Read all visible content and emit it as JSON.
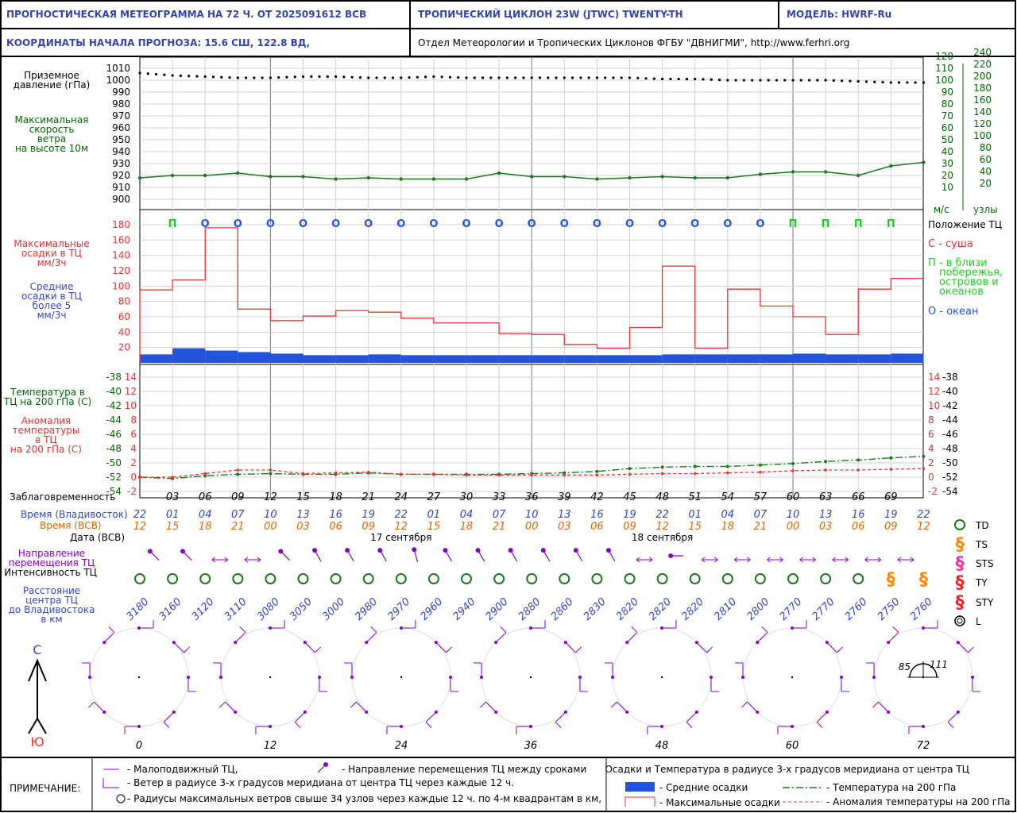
{
  "header": {
    "title": "ПРОГНОСТИЧЕСКАЯ МЕТЕОГРАММА НА 72 Ч. ОТ 2025091612 ВСВ",
    "cyclone": "ТРОПИЧЕСКИЙ ЦИКЛОН  23W  (JTWC)  TWENTY-TH",
    "model": "МОДЕЛЬ:   HWRF-Ru",
    "coords": "КООРДИНАТЫ НАЧАЛА ПРОГНОЗА:  15.6  СШ,    122.8  ВД,",
    "org": "Отдел Метеорологии и Тропических Циклонов ФГБУ \"ДВНИГМИ\",   http://www.ferhri.org"
  },
  "labels": {
    "pressure": [
      "Приземное",
      "давление (гПа)"
    ],
    "wind": [
      "Максимальная",
      "скорость",
      "ветра",
      "на высоте 10м"
    ],
    "precip_max": [
      "Максимальные",
      "осадки в ТЦ",
      "мм/3ч"
    ],
    "precip_avg": [
      "Средние",
      "осадки в ТЦ",
      "более 5",
      "мм/3ч"
    ],
    "temp": [
      "Температура в",
      "ТЦ на 200 гПа (C)"
    ],
    "anom": [
      "Аномалия",
      "температуры",
      "в ТЦ",
      "на 200 гПа (С)"
    ],
    "lead": "Заблаговременность",
    "time_vlad": "Время (Владивосток)",
    "time_utc": "Время (ВСВ)",
    "date": "Дата (ВСВ)",
    "direction": [
      "Направление",
      "перемещения ТЦ"
    ],
    "intensity": "Интенсивность ТЦ",
    "distance": [
      "Расстояние",
      "центра ТЦ",
      "до Владивостока",
      "в км"
    ],
    "ms": "м/с",
    "kt": "узлы",
    "north": "С",
    "south": "Ю"
  },
  "position_legend": {
    "title": "Положение ТЦ",
    "land": "С - суша",
    "coast": [
      "П - в близи",
      "побережья,",
      "островов и",
      "океанов"
    ],
    "ocean": "О - океан"
  },
  "intensity_legend": [
    "TD",
    "TS",
    "STS",
    "TY",
    "STY",
    "L"
  ],
  "footer": {
    "note": "ПРИМЕЧАНИЕ:",
    "stationary": "- Малоподвижный ТЦ,",
    "direction": "- Направление перемещения ТЦ между сроками",
    "wind": "- Ветер в радиусе 3-х градусов меридиана от центра ТЦ через каждые 12 ч.",
    "radii": "- Радиусы максимальных ветров свыше 34 узлов через каждые 12 ч. по 4-м квадрантам в км,",
    "precip_title": "Осадки и Температура в радиусе 3-х градусов меридиана от центра ТЦ",
    "avg": "- Средние осадки",
    "max": "- Максимальные осадки",
    "temp": "- Температура на 200 гПа",
    "anom": "- Аномалия температуры на 200 гПа"
  },
  "dates": [
    "17 сентября",
    "18 сентября"
  ],
  "wind_rose_labels": [
    "0",
    "12",
    "24",
    "36",
    "48",
    "60",
    "72"
  ],
  "radii_values": [
    "85",
    "111"
  ],
  "colors": {
    "blue_text": "#3344cc",
    "green_text": "#006600",
    "red_text": "#dd3333",
    "orange_text": "#dd6600",
    "purple": "#8800cc",
    "precip_avg": "#2255dd",
    "precip_max": "#ee3333"
  },
  "chart_data": {
    "type": "line",
    "lead_hours": [
      0,
      3,
      6,
      9,
      12,
      15,
      18,
      21,
      24,
      27,
      30,
      33,
      36,
      39,
      42,
      45,
      48,
      51,
      54,
      57,
      60,
      63,
      66,
      69,
      72
    ],
    "lead_labels": [
      "03",
      "06",
      "09",
      "12",
      "15",
      "18",
      "21",
      "24",
      "27",
      "30",
      "33",
      "36",
      "39",
      "42",
      "45",
      "48",
      "51",
      "54",
      "57",
      "60",
      "63",
      "66",
      "69"
    ],
    "time_vladivostok": [
      "22",
      "01",
      "04",
      "07",
      "10",
      "13",
      "16",
      "19",
      "22",
      "01",
      "04",
      "07",
      "10",
      "13",
      "16",
      "19",
      "22",
      "01",
      "04",
      "07",
      "10",
      "13",
      "16",
      "19",
      "22"
    ],
    "time_utc": [
      "12",
      "15",
      "18",
      "21",
      "00",
      "03",
      "06",
      "09",
      "12",
      "15",
      "18",
      "21",
      "00",
      "03",
      "06",
      "09",
      "12",
      "15",
      "18",
      "21",
      "00",
      "03",
      "06",
      "09",
      "12"
    ],
    "pressure_hpa": [
      1006,
      1004,
      1003,
      1002,
      1002,
      1003,
      1003,
      1002,
      1002,
      1003,
      1002,
      1002,
      1002,
      1002,
      1002,
      1002,
      1001,
      1001,
      1000,
      1000,
      1000,
      1000,
      999,
      998,
      998
    ],
    "pressure_axis": [
      900,
      910,
      920,
      930,
      940,
      950,
      960,
      970,
      980,
      990,
      1000,
      1010
    ],
    "max_wind_ms": [
      18,
      20,
      20,
      22,
      19,
      19,
      17,
      18,
      17,
      17,
      17,
      22,
      19,
      19,
      17,
      18,
      19,
      18,
      18,
      21,
      23,
      23,
      20,
      28,
      31
    ],
    "wind_axis_ms": [
      10,
      20,
      30,
      40,
      50,
      60,
      70,
      80,
      90,
      100,
      110,
      120
    ],
    "wind_axis_kt": [
      20,
      40,
      60,
      80,
      100,
      120,
      140,
      160,
      180,
      200,
      220,
      240
    ],
    "position": [
      "П",
      "О",
      "О",
      "О",
      "О",
      "О",
      "О",
      "О",
      "О",
      "О",
      "О",
      "О",
      "О",
      "О",
      "О",
      "О",
      "О",
      "О",
      "О",
      "П",
      "П",
      "П",
      "П"
    ],
    "precip_max": [
      95,
      108,
      176,
      70,
      55,
      61,
      68,
      66,
      58,
      52,
      52,
      38,
      37,
      24,
      19,
      46,
      126,
      19,
      96,
      74,
      60,
      37,
      96,
      110
    ],
    "precip_avg": [
      11,
      19,
      16,
      14,
      12,
      10,
      10,
      11,
      10,
      10,
      10,
      10,
      10,
      10,
      10,
      10,
      11,
      11,
      11,
      11,
      12,
      11,
      11,
      12
    ],
    "precip_axis": [
      20,
      40,
      60,
      80,
      100,
      120,
      140,
      160,
      180
    ],
    "temp_200": [
      -52.0,
      -52.2,
      -51.8,
      -51.6,
      -51.5,
      -51.6,
      -51.6,
      -51.4,
      -51.6,
      -51.6,
      -51.6,
      -51.6,
      -51.5,
      -51.4,
      -51.2,
      -50.8,
      -50.6,
      -50.5,
      -50.5,
      -50.3,
      -50.1,
      -49.8,
      -49.6,
      -49.3,
      -49.1
    ],
    "anomaly_200": [
      0,
      0,
      0.5,
      1,
      1,
      0.5,
      0.6,
      0.7,
      0.4,
      0.4,
      0.3,
      0.3,
      0.3,
      0.3,
      0.3,
      0.4,
      0.5,
      0.5,
      0.6,
      0.7,
      0.9,
      1.0,
      1.0,
      1.1,
      1.2
    ],
    "temp_axis": [
      -38,
      -40,
      -42,
      -44,
      -46,
      -48,
      -50,
      -52,
      -54
    ],
    "anom_axis": [
      14,
      12,
      10,
      8,
      6,
      4,
      2,
      0,
      -2
    ],
    "direction_deg": [
      315,
      315,
      270,
      270,
      315,
      330,
      330,
      330,
      345,
      330,
      330,
      330,
      330,
      330,
      330,
      270,
      270,
      315,
      270,
      270,
      270,
      270,
      270,
      270
    ],
    "stationary": [
      false,
      false,
      true,
      true,
      false,
      false,
      false,
      false,
      false,
      false,
      false,
      false,
      false,
      false,
      false,
      true,
      false,
      true,
      true,
      true,
      true,
      true,
      true,
      true
    ],
    "intensity": [
      "TD",
      "TD",
      "TD",
      "TD",
      "TD",
      "TD",
      "TD",
      "TD",
      "TD",
      "TD",
      "TD",
      "TD",
      "TD",
      "TD",
      "TD",
      "TD",
      "TD",
      "TD",
      "TD",
      "TD",
      "TD",
      "TD",
      "TD",
      "TS",
      "TS"
    ],
    "distance_km": [
      3180,
      3160,
      3120,
      3110,
      3080,
      3050,
      3000,
      2980,
      2970,
      2960,
      2940,
      2900,
      2880,
      2860,
      2830,
      2820,
      2820,
      2820,
      2810,
      2800,
      2770,
      2770,
      2760,
      2750,
      2760
    ]
  }
}
